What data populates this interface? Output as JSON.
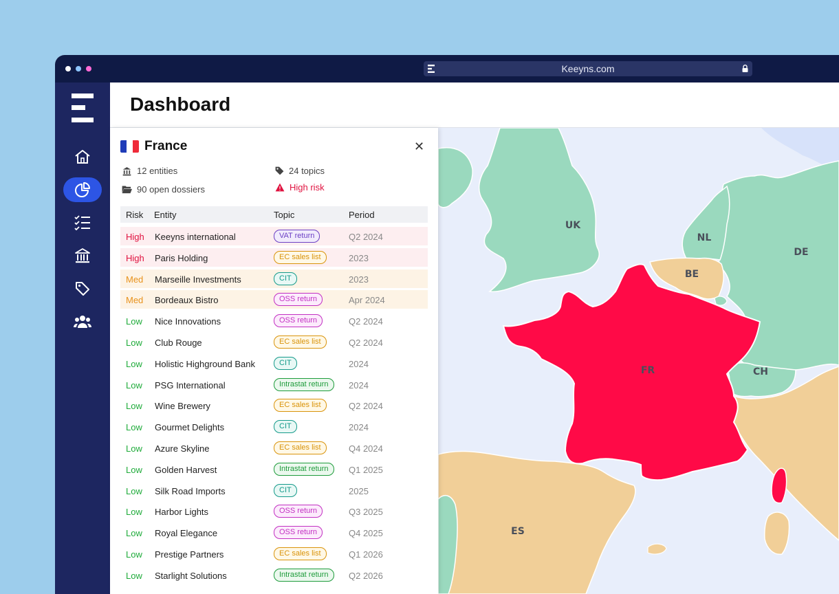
{
  "browser": {
    "url": "Keeyns.com",
    "dots": [
      "#ffffff",
      "#8ec5ff",
      "#ff6ad5"
    ]
  },
  "sidebar": {
    "items": [
      {
        "name": "home-icon",
        "active": false
      },
      {
        "name": "pie-chart-icon",
        "active": true
      },
      {
        "name": "checklist-icon",
        "active": false
      },
      {
        "name": "bank-icon",
        "active": false
      },
      {
        "name": "tag-icon",
        "active": false
      },
      {
        "name": "users-icon",
        "active": false
      }
    ]
  },
  "header": {
    "title": "Dashboard"
  },
  "panel": {
    "country": "France",
    "stats": {
      "entities": "12 entities",
      "dossiers": "90 open dossiers",
      "topics": "24 topics",
      "risk": "High risk"
    },
    "columns": {
      "risk": "Risk",
      "entity": "Entity",
      "topic": "Topic",
      "period": "Period"
    },
    "rows": [
      {
        "risk": "High",
        "entity": "Keeyns international",
        "topic": "VAT return",
        "period": "Q2 2024"
      },
      {
        "risk": "High",
        "entity": "Paris Holding",
        "topic": "EC sales list",
        "period": "2023"
      },
      {
        "risk": "Med",
        "entity": "Marseille Investments",
        "topic": "CIT",
        "period": "2023"
      },
      {
        "risk": "Med",
        "entity": "Bordeaux Bistro",
        "topic": "OSS return",
        "period": "Apr 2024"
      },
      {
        "risk": "Low",
        "entity": "Nice Innovations",
        "topic": "OSS return",
        "period": "Q2 2024"
      },
      {
        "risk": "Low",
        "entity": "Club Rouge",
        "topic": "EC sales list",
        "period": "Q2 2024"
      },
      {
        "risk": "Low",
        "entity": "Holistic Highground Bank",
        "topic": "CIT",
        "period": "2024"
      },
      {
        "risk": "Low",
        "entity": "PSG International",
        "topic": "Intrastat return",
        "period": "2024"
      },
      {
        "risk": "Low",
        "entity": "Wine Brewery",
        "topic": "EC sales list",
        "period": "Q2 2024"
      },
      {
        "risk": "Low",
        "entity": "Gourmet Delights",
        "topic": "CIT",
        "period": "2024"
      },
      {
        "risk": "Low",
        "entity": "Azure Skyline",
        "topic": "EC sales list",
        "period": "Q4 2024"
      },
      {
        "risk": "Low",
        "entity": "Golden Harvest",
        "topic": "Intrastat return",
        "period": "Q1 2025"
      },
      {
        "risk": "Low",
        "entity": "Silk Road Imports",
        "topic": "CIT",
        "period": "2025"
      },
      {
        "risk": "Low",
        "entity": "Harbor Lights",
        "topic": "OSS return",
        "period": "Q3 2025"
      },
      {
        "risk": "Low",
        "entity": "Royal Elegance",
        "topic": "OSS return",
        "period": "Q4 2025"
      },
      {
        "risk": "Low",
        "entity": "Prestige Partners",
        "topic": "EC sales list",
        "period": "Q1 2026"
      },
      {
        "risk": "Low",
        "entity": "Starlight Solutions",
        "topic": "Intrastat return",
        "period": "Q2 2026"
      }
    ]
  },
  "map": {
    "labels": {
      "uk": "UK",
      "nl": "NL",
      "de": "DE",
      "be": "BE",
      "fr": "FR",
      "ch": "CH",
      "es": "ES"
    }
  },
  "colors": {
    "high": "#e0123f",
    "med": "#e8921c",
    "low": "#1fab3a",
    "high_bg": "#fdeef0",
    "med_bg": "#fdf3e5",
    "france": "#ff0a47",
    "green_land": "#9ad9be",
    "tan_land": "#f1cf98",
    "sea": "#e8eefb"
  }
}
